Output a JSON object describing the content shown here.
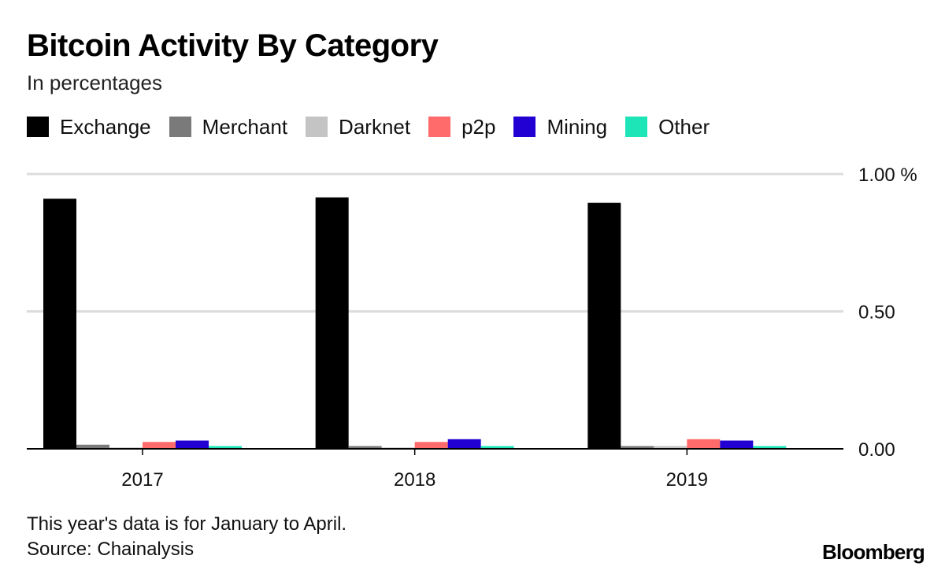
{
  "header": {
    "title": "Bitcoin Activity By Category",
    "subtitle": "In percentages"
  },
  "chart_data": {
    "type": "bar",
    "categories": [
      "2017",
      "2018",
      "2019"
    ],
    "series": [
      {
        "name": "Exchange",
        "color": "#000000",
        "values": [
          0.91,
          0.915,
          0.895
        ]
      },
      {
        "name": "Merchant",
        "color": "#7a7a7a",
        "values": [
          0.015,
          0.01,
          0.01
        ]
      },
      {
        "name": "Darknet",
        "color": "#c4c4c4",
        "values": [
          0.005,
          0.005,
          0.01
        ]
      },
      {
        "name": "p2p",
        "color": "#ff6b6b",
        "values": [
          0.025,
          0.025,
          0.035
        ]
      },
      {
        "name": "Mining",
        "color": "#2200d4",
        "values": [
          0.03,
          0.035,
          0.03
        ]
      },
      {
        "name": "Other",
        "color": "#1de5b8",
        "values": [
          0.01,
          0.01,
          0.01
        ]
      }
    ],
    "ylim": [
      0,
      1.0
    ],
    "yticks": [
      {
        "value": 1.0,
        "label": "1.00 %"
      },
      {
        "value": 0.5,
        "label": "0.50"
      },
      {
        "value": 0.0,
        "label": "0.00"
      }
    ],
    "grid": true,
    "legend_position": "top"
  },
  "footer": {
    "note": "This year's data is for January to April.",
    "source": "Source: Chainalysis",
    "brand": "Bloomberg"
  }
}
